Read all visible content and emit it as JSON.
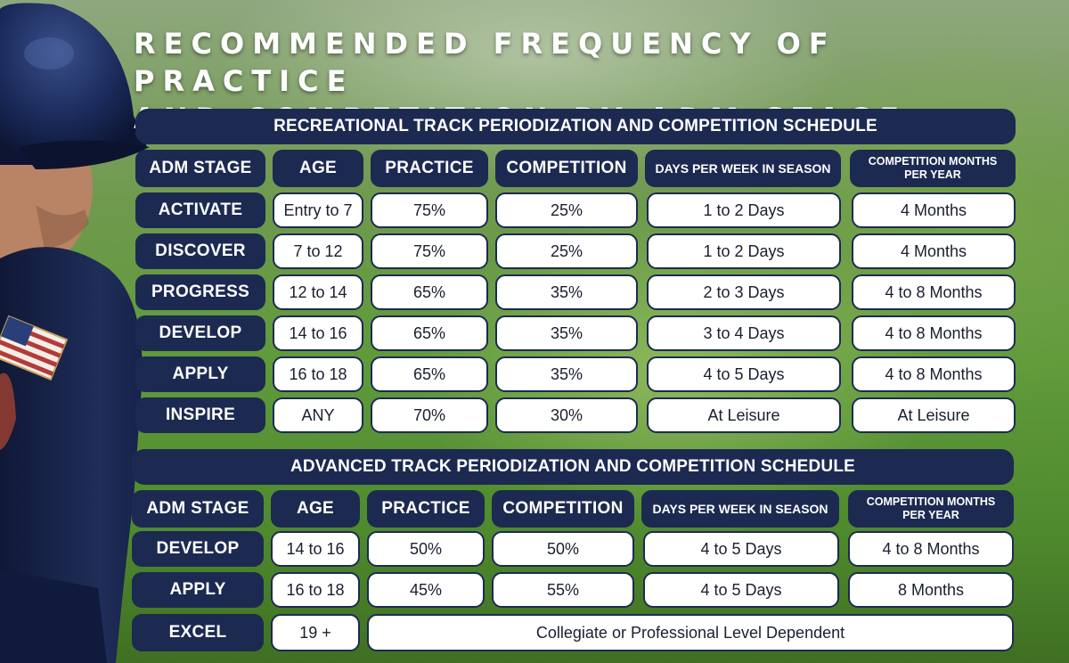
{
  "title": {
    "line1": "RECOMMENDED FREQUENCY OF PRACTICE",
    "line2": "AND COMPETITION BY ADM STAGE"
  },
  "recreational": {
    "header": "RECREATIONAL TRACK PERIODIZATION AND COMPETITION SCHEDULE",
    "columns": [
      "ADM STAGE",
      "AGE",
      "PRACTICE",
      "COMPETITION",
      "DAYS PER WEEK IN SEASON",
      "COMPETITION MONTHS PER YEAR"
    ],
    "rows": [
      {
        "stage": "ACTIVATE",
        "age": "Entry to 7",
        "practice": "75%",
        "competition": "25%",
        "days": "1 to 2 Days",
        "months": "4 Months"
      },
      {
        "stage": "DISCOVER",
        "age": "7 to 12",
        "practice": "75%",
        "competition": "25%",
        "days": "1 to 2 Days",
        "months": "4 Months"
      },
      {
        "stage": "PROGRESS",
        "age": "12 to 14",
        "practice": "65%",
        "competition": "35%",
        "days": "2 to 3 Days",
        "months": "4 to 8 Months"
      },
      {
        "stage": "DEVELOP",
        "age": "14 to 16",
        "practice": "65%",
        "competition": "35%",
        "days": "3 to 4 Days",
        "months": "4 to 8 Months"
      },
      {
        "stage": "APPLY",
        "age": "16 to 18",
        "practice": "65%",
        "competition": "35%",
        "days": "4 to 5 Days",
        "months": "4 to 8 Months"
      },
      {
        "stage": "INSPIRE",
        "age": "ANY",
        "practice": "70%",
        "competition": "30%",
        "days": "At Leisure",
        "months": "At Leisure"
      }
    ]
  },
  "advanced": {
    "header": "ADVANCED TRACK PERIODIZATION AND COMPETITION SCHEDULE",
    "columns": [
      "ADM STAGE",
      "AGE",
      "PRACTICE",
      "COMPETITION",
      "DAYS PER WEEK IN SEASON",
      "COMPETITION MONTHS PER YEAR"
    ],
    "rows": [
      {
        "stage": "DEVELOP",
        "age": "14 to 16",
        "practice": "50%",
        "competition": "50%",
        "days": "4 to 5 Days",
        "months": "4 to 8 Months"
      },
      {
        "stage": "APPLY",
        "age": "16 to 18",
        "practice": "45%",
        "competition": "55%",
        "days": "4 to 5 Days",
        "months": "8 Months"
      },
      {
        "stage": "EXCEL",
        "age": "19 +",
        "merged": "Collegiate or Professional Level Dependent"
      }
    ]
  },
  "colors": {
    "navy": "#1c2a52",
    "cell_bg": "#ffffff",
    "field_green": "#5f9a3a"
  },
  "icons": {
    "player": "baseball-player-photo",
    "flag": "american-flag-patch-icon"
  }
}
